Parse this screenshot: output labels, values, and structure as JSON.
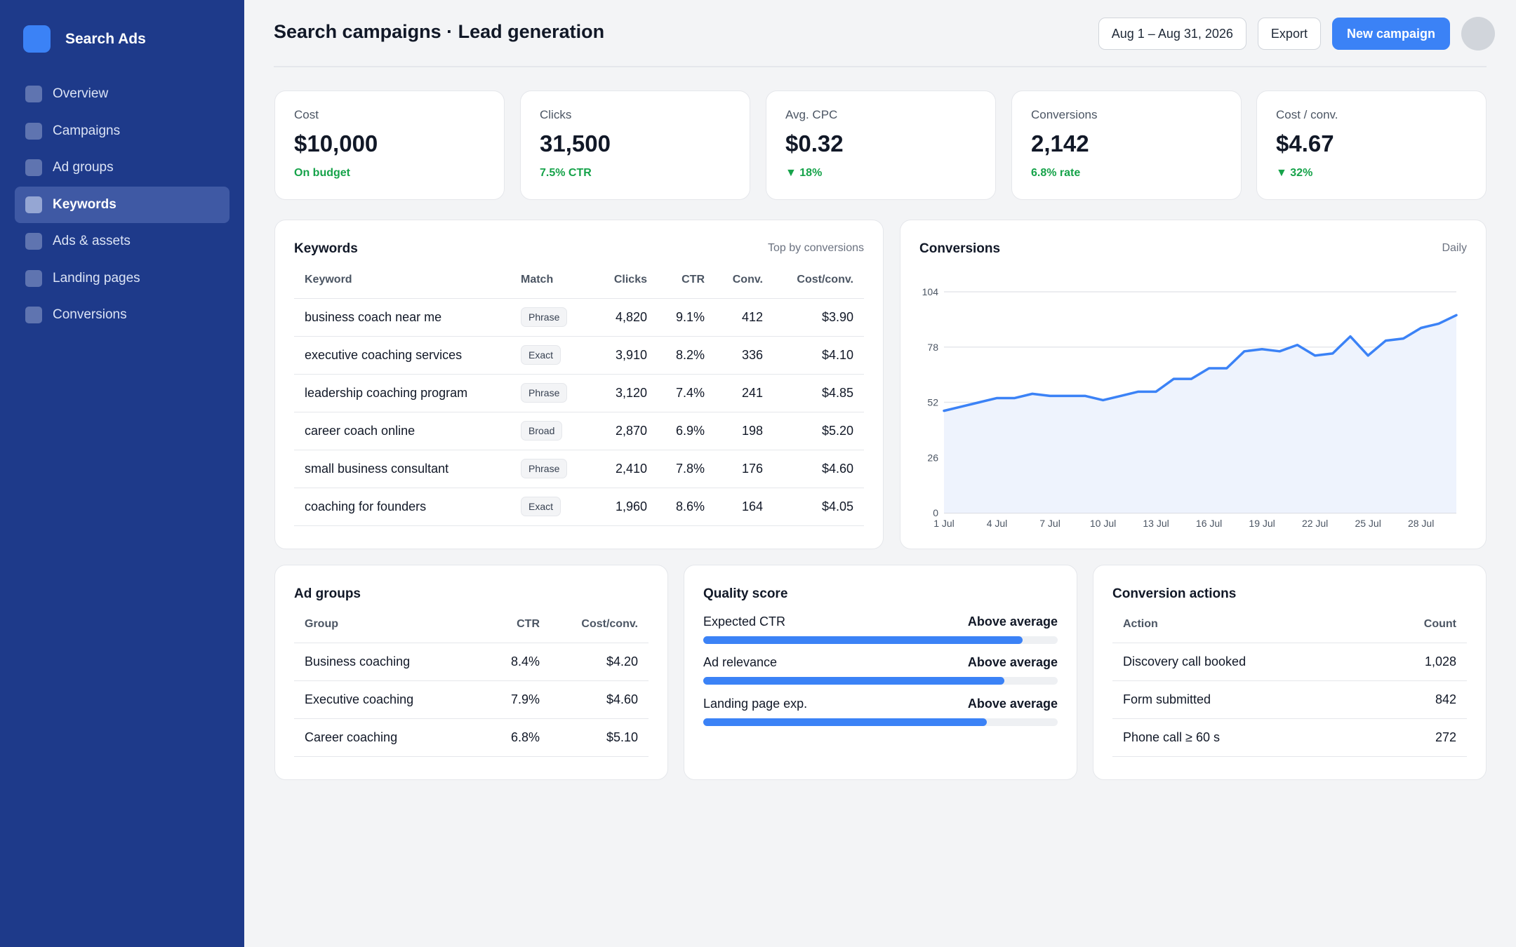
{
  "app": {
    "name": "Search Ads"
  },
  "sidebar": {
    "items": [
      {
        "label": "Overview",
        "active": false
      },
      {
        "label": "Campaigns",
        "active": false
      },
      {
        "label": "Ad groups",
        "active": false
      },
      {
        "label": "Keywords",
        "active": true
      },
      {
        "label": "Ads & assets",
        "active": false
      },
      {
        "label": "Landing pages",
        "active": false
      },
      {
        "label": "Conversions",
        "active": false
      }
    ]
  },
  "header": {
    "title": "Search campaigns · Lead generation",
    "date_range": "Aug 1 – Aug 31, 2026",
    "export_label": "Export",
    "new_campaign_label": "New campaign"
  },
  "kpis": [
    {
      "label": "Cost",
      "value": "$10,000",
      "delta": "On budget"
    },
    {
      "label": "Clicks",
      "value": "31,500",
      "delta": "7.5% CTR"
    },
    {
      "label": "Avg. CPC",
      "value": "$0.32",
      "delta": "▼ 18%"
    },
    {
      "label": "Conversions",
      "value": "2,142",
      "delta": "6.8% rate"
    },
    {
      "label": "Cost / conv.",
      "value": "$4.67",
      "delta": "▼ 32%"
    }
  ],
  "keywords": {
    "title": "Keywords",
    "subtitle": "Top by conversions",
    "columns": [
      "Keyword",
      "Match",
      "Clicks",
      "CTR",
      "Conv.",
      "Cost/conv."
    ],
    "rows": [
      {
        "keyword": "business coach near me",
        "match": "Phrase",
        "clicks": "4,820",
        "ctr": "9.1%",
        "conv": "412",
        "cost": "$3.90"
      },
      {
        "keyword": "executive coaching services",
        "match": "Exact",
        "clicks": "3,910",
        "ctr": "8.2%",
        "conv": "336",
        "cost": "$4.10"
      },
      {
        "keyword": "leadership coaching program",
        "match": "Phrase",
        "clicks": "3,120",
        "ctr": "7.4%",
        "conv": "241",
        "cost": "$4.85"
      },
      {
        "keyword": "career coach online",
        "match": "Broad",
        "clicks": "2,870",
        "ctr": "6.9%",
        "conv": "198",
        "cost": "$5.20"
      },
      {
        "keyword": "small business consultant",
        "match": "Phrase",
        "clicks": "2,410",
        "ctr": "7.8%",
        "conv": "176",
        "cost": "$4.60"
      },
      {
        "keyword": "coaching for founders",
        "match": "Exact",
        "clicks": "1,960",
        "ctr": "8.6%",
        "conv": "164",
        "cost": "$4.05"
      }
    ]
  },
  "conversions_chart": {
    "title": "Conversions",
    "subtitle": "Daily"
  },
  "chart_data": {
    "type": "area",
    "x": [
      "1 Jul",
      "2 Jul",
      "3 Jul",
      "4 Jul",
      "5 Jul",
      "6 Jul",
      "7 Jul",
      "8 Jul",
      "9 Jul",
      "10 Jul",
      "11 Jul",
      "12 Jul",
      "13 Jul",
      "14 Jul",
      "15 Jul",
      "16 Jul",
      "17 Jul",
      "18 Jul",
      "19 Jul",
      "20 Jul",
      "21 Jul",
      "22 Jul",
      "23 Jul",
      "24 Jul",
      "25 Jul",
      "26 Jul",
      "27 Jul",
      "28 Jul",
      "29 Jul",
      "30 Jul"
    ],
    "x_tick_labels": [
      "1 Jul",
      "4 Jul",
      "7 Jul",
      "10 Jul",
      "13 Jul",
      "16 Jul",
      "19 Jul",
      "22 Jul",
      "25 Jul",
      "28 Jul"
    ],
    "series": [
      {
        "values": [
          48,
          50,
          52,
          54,
          54,
          56,
          55,
          55,
          55,
          53,
          55,
          57,
          57,
          63,
          63,
          68,
          68,
          76,
          77,
          76,
          79,
          74,
          75,
          83,
          74,
          81,
          82,
          87,
          89,
          93
        ]
      }
    ],
    "y_ticks": [
      0,
      26,
      52,
      78,
      104
    ],
    "ylim": [
      0,
      104
    ],
    "grid": true,
    "color": "#3b82f6",
    "fill_color": "#eef3fd"
  },
  "ad_groups": {
    "title": "Ad groups",
    "columns": [
      "Group",
      "CTR",
      "Cost/conv."
    ],
    "rows": [
      {
        "group": "Business coaching",
        "ctr": "8.4%",
        "cost": "$4.20"
      },
      {
        "group": "Executive coaching",
        "ctr": "7.9%",
        "cost": "$4.60"
      },
      {
        "group": "Career coaching",
        "ctr": "6.8%",
        "cost": "$5.10"
      }
    ]
  },
  "quality_score": {
    "title": "Quality score",
    "items": [
      {
        "name": "Expected CTR",
        "value": "Above average",
        "fraction": 0.9
      },
      {
        "name": "Ad relevance",
        "value": "Above average",
        "fraction": 0.85
      },
      {
        "name": "Landing page exp.",
        "value": "Above average",
        "fraction": 0.8
      }
    ]
  },
  "conversion_actions": {
    "title": "Conversion actions",
    "columns": [
      "Action",
      "Count"
    ],
    "rows": [
      {
        "action": "Discovery call booked",
        "count": "1,028"
      },
      {
        "action": "Form submitted",
        "count": "842"
      },
      {
        "action": "Phone call ≥ 60 s",
        "count": "272"
      }
    ]
  },
  "colors": {
    "sidebar": "#1e3a8a",
    "accent": "#3b82f6",
    "positive": "#16a34a"
  }
}
